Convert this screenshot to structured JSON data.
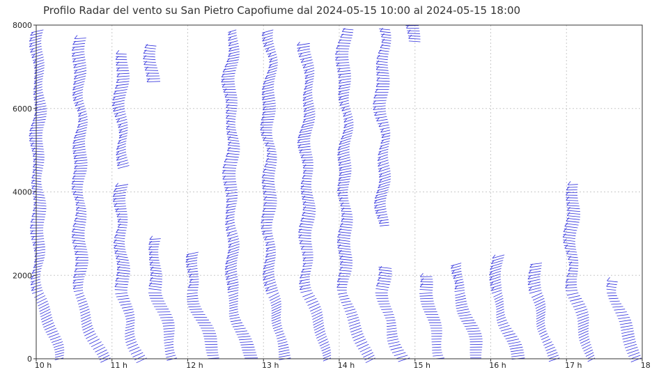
{
  "chart_data": {
    "type": "wind-barb profile",
    "title": "Profilo Radar del vento su San Pietro Capofiume dal 2024-05-15 10:00 al 2024-05-15 18:00",
    "x_ticks": [
      "10 h",
      "11 h",
      "12 h",
      "13 h",
      "14 h",
      "15 h",
      "16 h",
      "17 h",
      "18 h"
    ],
    "y_ticks": [
      "0",
      "2000",
      "4000",
      "6000",
      "8000"
    ],
    "xlim": [
      10,
      18
    ],
    "ylim": [
      0,
      8000
    ],
    "grid": true,
    "barb_color": "#2b2bdc",
    "profiles": [
      {
        "time": 10.1,
        "top": 7900,
        "gaps": []
      },
      {
        "time": 10.65,
        "top": 7700,
        "gaps": []
      },
      {
        "time": 11.2,
        "top": 7300,
        "gaps": [
          [
            4200,
            4600
          ]
        ]
      },
      {
        "time": 11.65,
        "top": 2900,
        "gaps": []
      },
      {
        "time": 12.15,
        "top": 2600,
        "gaps": []
      },
      {
        "time": 12.65,
        "top": 7900,
        "gaps": []
      },
      {
        "time": 13.15,
        "top": 7900,
        "gaps": []
      },
      {
        "time": 13.65,
        "top": 7600,
        "gaps": []
      },
      {
        "time": 14.15,
        "top": 7900,
        "gaps": []
      },
      {
        "time": 14.65,
        "top": 7900,
        "gaps": [
          [
            2200,
            3200
          ]
        ]
      },
      {
        "time": 15.2,
        "top": 2000,
        "gaps": []
      },
      {
        "time": 15.65,
        "top": 2300,
        "gaps": []
      },
      {
        "time": 16.15,
        "top": 2500,
        "gaps": []
      },
      {
        "time": 16.65,
        "top": 2300,
        "gaps": []
      },
      {
        "time": 17.15,
        "top": 4200,
        "gaps": []
      },
      {
        "time": 17.7,
        "top": 1900,
        "gaps": []
      }
    ],
    "upper_fragments": [
      {
        "time": 11.6,
        "top": 7500,
        "bottom": 6650
      },
      {
        "time": 15.05,
        "top": 8000,
        "bottom": 7600
      }
    ]
  }
}
